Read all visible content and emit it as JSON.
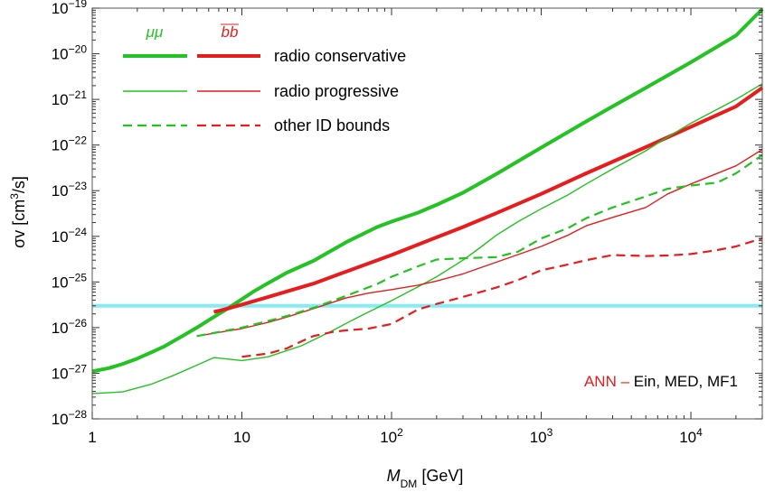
{
  "chart_data": {
    "type": "line",
    "title": "",
    "xlabel": {
      "main": "M",
      "sub": "DM",
      "rest": " [GeV]"
    },
    "ylabel": {
      "pre": "σv [cm",
      "sup": "3",
      "post": "/s]"
    },
    "xscale": "log",
    "yscale": "log",
    "xlim": [
      1,
      30000
    ],
    "ylim": [
      1e-28,
      1e-19
    ],
    "x_ticks": [
      {
        "value": 1,
        "base": "1",
        "exp": ""
      },
      {
        "value": 10,
        "base": "10",
        "exp": ""
      },
      {
        "value": 100,
        "base": "10",
        "exp": "2"
      },
      {
        "value": 1000,
        "base": "10",
        "exp": "3"
      },
      {
        "value": 10000,
        "base": "10",
        "exp": "4"
      }
    ],
    "y_ticks": [
      {
        "value": 1e-28,
        "base": "10",
        "exp": "−28"
      },
      {
        "value": 1e-27,
        "base": "10",
        "exp": "−27"
      },
      {
        "value": 1e-26,
        "base": "10",
        "exp": "−26"
      },
      {
        "value": 1e-25,
        "base": "10",
        "exp": "−25"
      },
      {
        "value": 1e-24,
        "base": "10",
        "exp": "−24"
      },
      {
        "value": 1e-23,
        "base": "10",
        "exp": "−23"
      },
      {
        "value": 1e-22,
        "base": "10",
        "exp": "−22"
      },
      {
        "value": 1e-21,
        "base": "10",
        "exp": "−21"
      },
      {
        "value": 1e-20,
        "base": "10",
        "exp": "−20"
      },
      {
        "value": 1e-19,
        "base": "10",
        "exp": "−19"
      }
    ],
    "grid": false,
    "legend_placement": "top-left",
    "legend": {
      "headers": [
        {
          "text": "μμ",
          "color": "#22c322"
        },
        {
          "text": "bb",
          "color": "#e81c1c"
        }
      ],
      "rows": [
        {
          "label": "radio conservative",
          "style": "thick"
        },
        {
          "label": "radio progressive",
          "style": "thin"
        },
        {
          "label": "other ID bounds",
          "style": "dashed"
        }
      ]
    },
    "annotation": {
      "part1": "ANN – ",
      "part2": "Ein, MED, MF1",
      "color1": "#e81c1c",
      "color2": "#000000",
      "placement": "bottom-right"
    },
    "hline": {
      "y": 3e-26,
      "color": "#86ecf4"
    },
    "series": [
      {
        "key": "mumu_conservative",
        "color": "#22c322",
        "style": "thick",
        "x": [
          1,
          1.3,
          1.6,
          2,
          2.5,
          3,
          4,
          5,
          6,
          8,
          10,
          12,
          15,
          20,
          30,
          50,
          80,
          100,
          150,
          200,
          300,
          500,
          1000,
          2000,
          3000,
          5000,
          10000,
          20000,
          30000
        ],
        "y": [
          1.1e-27,
          1.3e-27,
          1.6e-27,
          2.1e-27,
          2.9e-27,
          3.8e-27,
          6.5e-27,
          1e-26,
          1.45e-26,
          2.6e-26,
          4.2e-26,
          6.2e-26,
          9.5e-26,
          1.6e-25,
          2.9e-25,
          7.5e-25,
          1.6e-24,
          2.1e-24,
          3.3e-24,
          4.9e-24,
          9e-24,
          2.3e-23,
          8.8e-23,
          3.3e-22,
          7e-22,
          1.8e-21,
          6.5e-21,
          2.5e-20,
          9.5e-20
        ]
      },
      {
        "key": "bb_conservative",
        "color": "#e81c1c",
        "style": "thick",
        "x": [
          6.5,
          8,
          10,
          15,
          20,
          30,
          50,
          100,
          200,
          300,
          500,
          1000,
          2000,
          5000,
          10000,
          20000,
          30000
        ],
        "y": [
          2.2e-26,
          2.6e-26,
          3.2e-26,
          4.7e-26,
          6.2e-26,
          9.2e-26,
          1.7e-25,
          3.9e-25,
          9.5e-25,
          1.6e-24,
          3.2e-24,
          8.5e-24,
          2.4e-23,
          9e-23,
          2.5e-22,
          7e-22,
          1.8e-21
        ]
      },
      {
        "key": "mumu_progressive",
        "color": "#22c322",
        "style": "thin",
        "x": [
          1,
          1.6,
          2.5,
          3.5,
          5,
          6.5,
          10,
          15,
          25,
          40,
          60,
          100,
          150,
          200,
          300,
          400,
          500,
          700,
          1000,
          1500,
          2000,
          3000,
          5000,
          7000,
          10000,
          20000,
          30000
        ],
        "y": [
          3.6e-28,
          3.9e-28,
          5.8e-28,
          9e-28,
          1.5e-27,
          2.2e-27,
          1.9e-27,
          2.3e-27,
          4e-27,
          8.5e-27,
          1.7e-26,
          3.9e-26,
          7.8e-26,
          1.3e-25,
          3e-25,
          6e-25,
          1.05e-24,
          2.1e-24,
          4e-24,
          8e-24,
          1.4e-23,
          3e-23,
          7.5e-23,
          1.5e-22,
          3e-22,
          1e-21,
          2.2e-21
        ]
      },
      {
        "key": "bb_progressive",
        "color": "#e81c1c",
        "style": "thin",
        "x": [
          5,
          6.5,
          10,
          15,
          20,
          30,
          50,
          70,
          100,
          150,
          200,
          300,
          500,
          1000,
          1500,
          2000,
          3000,
          5000,
          7000,
          10000,
          20000,
          30000
        ],
        "y": [
          6.5e-27,
          7.5e-27,
          9.5e-27,
          1.3e-26,
          1.7e-26,
          2.6e-26,
          4.5e-26,
          5.7e-26,
          6.8e-26,
          8.5e-26,
          1.05e-25,
          1.5e-25,
          2.7e-25,
          6e-25,
          1.05e-24,
          1.7e-24,
          2.6e-24,
          4.3e-24,
          8.5e-24,
          1.4e-23,
          3.5e-23,
          8e-23
        ]
      },
      {
        "key": "mumu_other",
        "color": "#22c322",
        "style": "dashed",
        "x": [
          5,
          7,
          10,
          15,
          20,
          30,
          50,
          80,
          100,
          150,
          200,
          300,
          500,
          700,
          1000,
          1500,
          2000,
          3000,
          5000,
          7000,
          10000,
          15000,
          20000,
          30000
        ],
        "y": [
          6.5e-27,
          8e-27,
          1e-26,
          1.4e-26,
          1.8e-26,
          2.7e-26,
          5e-26,
          9e-26,
          1.3e-25,
          2.2e-25,
          3.1e-25,
          3.3e-25,
          3.5e-25,
          4.6e-25,
          9e-25,
          1.5e-24,
          2.5e-24,
          4.3e-24,
          7.5e-24,
          1.1e-23,
          1.3e-23,
          1.5e-23,
          2.4e-23,
          6e-23
        ]
      },
      {
        "key": "bb_other",
        "color": "#e81c1c",
        "style": "dashed",
        "x": [
          10,
          15,
          20,
          25,
          30,
          40,
          50,
          70,
          100,
          150,
          200,
          300,
          500,
          700,
          1000,
          1500,
          2000,
          3000,
          5000,
          7000,
          10000,
          15000,
          20000,
          30000
        ],
        "y": [
          2.3e-27,
          2.7e-27,
          3.5e-27,
          5e-27,
          6.5e-27,
          8e-27,
          8.7e-27,
          9.5e-27,
          1.2e-26,
          2.5e-26,
          3.3e-26,
          4.7e-26,
          7.5e-26,
          1.1e-25,
          1.8e-25,
          2.4e-25,
          3e-25,
          3.9e-25,
          3.7e-25,
          3.8e-25,
          4.1e-25,
          5e-25,
          6e-25,
          9e-25
        ]
      }
    ]
  }
}
